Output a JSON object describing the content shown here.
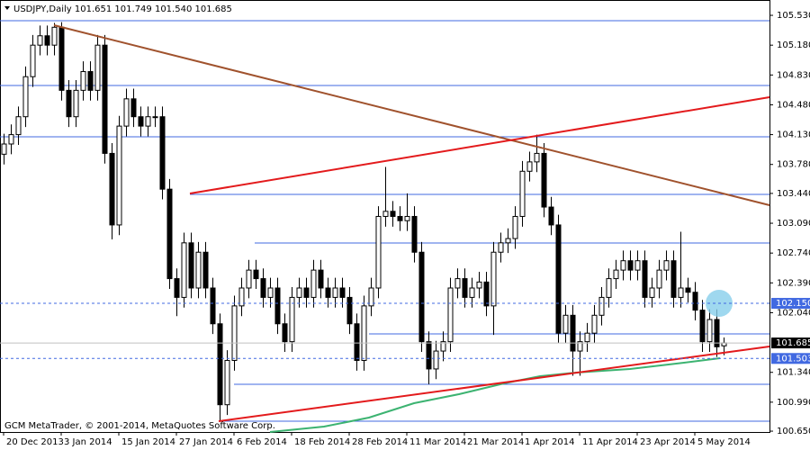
{
  "chart_data": {
    "type": "candlestick",
    "title": "USDJPY,Daily  101.651 101.749 101.540 101.685",
    "footer": "GCM MetaTrader, © 2001-2014, MetaQuotes Software Corp.",
    "categories": [
      "20 Dec 2013",
      null,
      null,
      null,
      null,
      null,
      null,
      null,
      "3 Jan 2014",
      null,
      null,
      null,
      null,
      null,
      null,
      null,
      "15 Jan 2014",
      null,
      null,
      null,
      null,
      null,
      null,
      null,
      "27 Jan 2014",
      null,
      null,
      null,
      null,
      null,
      null,
      null,
      "6 Feb 2014",
      null,
      null,
      null,
      null,
      null,
      null,
      null,
      "18 Feb 2014",
      null,
      null,
      null,
      null,
      null,
      null,
      null,
      "28 Feb 2014",
      null,
      null,
      null,
      null,
      null,
      null,
      null,
      "11 Mar 2014",
      null,
      null,
      null,
      null,
      null,
      null,
      null,
      "21 Mar 2014",
      null,
      null,
      null,
      null,
      null,
      null,
      null,
      "1 Apr 2014",
      null,
      null,
      null,
      null,
      null,
      null,
      null,
      "11 Apr 2014",
      null,
      null,
      null,
      null,
      null,
      null,
      null,
      "23 Apr 2014",
      null,
      null,
      null,
      null,
      null,
      null,
      null,
      "5 May 2014",
      null,
      null,
      null,
      null
    ],
    "series": [
      {
        "name": "USDJPY",
        "open": [
          103.9,
          104.02,
          104.13,
          104.34,
          104.81,
          105.18,
          105.29,
          105.18,
          105.39,
          104.65,
          104.34,
          104.65,
          104.87,
          104.65,
          105.18,
          103.91,
          103.07,
          104.23,
          104.55,
          104.34,
          104.23,
          104.34,
          104.34,
          103.49,
          102.44,
          102.22,
          102.86,
          102.33,
          102.75,
          102.33,
          101.91,
          100.96,
          101.48,
          102.12,
          102.33,
          102.54,
          102.44,
          102.22,
          102.33,
          101.91,
          101.7,
          102.22,
          102.33,
          102.22,
          102.54,
          102.33,
          102.22,
          102.33,
          102.22,
          101.91,
          101.48,
          102.12,
          102.33,
          103.17,
          103.23,
          103.17,
          103.12,
          103.17,
          102.75,
          101.7,
          101.38,
          101.59,
          101.7,
          102.33,
          102.44,
          102.22,
          102.33,
          102.4,
          102.12,
          102.75,
          102.86,
          102.91,
          103.17,
          103.7,
          103.81,
          103.91,
          103.28,
          103.07,
          101.8,
          102.01,
          101.59,
          101.7,
          101.8,
          102.01,
          102.22,
          102.44,
          102.54,
          102.65,
          102.54,
          102.65,
          102.22,
          102.33,
          102.54,
          102.65,
          102.22,
          102.33,
          102.28,
          102.07,
          101.7,
          101.96,
          101.651
        ],
        "high": [
          104.14,
          104.25,
          104.46,
          104.93,
          105.3,
          105.41,
          105.41,
          105.44,
          105.45,
          104.77,
          104.77,
          104.99,
          104.99,
          105.3,
          105.3,
          104.03,
          104.35,
          104.67,
          104.67,
          104.46,
          104.46,
          104.46,
          104.46,
          103.61,
          102.56,
          102.98,
          102.98,
          102.87,
          102.87,
          102.45,
          102.03,
          101.6,
          102.24,
          102.45,
          102.66,
          102.66,
          102.56,
          102.45,
          102.45,
          102.03,
          102.34,
          102.45,
          102.45,
          102.66,
          102.66,
          102.45,
          102.45,
          102.45,
          102.34,
          102.03,
          102.24,
          102.45,
          103.29,
          103.75,
          103.35,
          103.29,
          103.44,
          103.29,
          102.87,
          101.82,
          101.71,
          101.82,
          102.45,
          102.56,
          102.56,
          102.45,
          102.52,
          102.52,
          102.87,
          102.98,
          103.03,
          103.29,
          103.82,
          103.93,
          104.13,
          104.03,
          103.4,
          103.19,
          102.13,
          102.13,
          101.82,
          101.92,
          102.13,
          102.34,
          102.56,
          102.66,
          102.77,
          102.77,
          102.77,
          102.77,
          102.45,
          102.66,
          102.77,
          102.77,
          102.99,
          102.45,
          102.4,
          102.19,
          102.08,
          102.08,
          101.749
        ],
        "low": [
          103.78,
          103.9,
          104.01,
          104.22,
          104.69,
          105.06,
          105.06,
          105.06,
          104.53,
          104.22,
          104.22,
          104.53,
          104.53,
          104.53,
          103.79,
          102.9,
          102.95,
          104.11,
          104.22,
          104.11,
          104.11,
          104.22,
          103.37,
          102.32,
          102.0,
          102.1,
          102.21,
          102.21,
          102.21,
          101.79,
          100.76,
          100.84,
          101.36,
          102.0,
          102.21,
          102.32,
          102.1,
          102.1,
          101.79,
          101.58,
          101.58,
          102.1,
          102.1,
          102.1,
          102.21,
          102.1,
          102.1,
          102.1,
          101.79,
          101.36,
          101.36,
          102.0,
          102.21,
          103.05,
          103.05,
          103.0,
          103.0,
          102.63,
          101.58,
          101.2,
          101.26,
          101.47,
          101.58,
          102.21,
          102.1,
          102.1,
          102.21,
          102.0,
          101.78,
          102.63,
          102.74,
          102.79,
          103.05,
          103.58,
          103.69,
          103.16,
          102.95,
          101.68,
          101.68,
          101.3,
          101.3,
          101.58,
          101.68,
          101.89,
          102.1,
          102.32,
          102.42,
          102.42,
          102.42,
          102.1,
          102.1,
          102.21,
          102.42,
          102.1,
          102.1,
          102.16,
          101.95,
          101.58,
          101.58,
          101.52,
          101.54
        ],
        "close": [
          104.02,
          104.13,
          104.34,
          104.81,
          105.18,
          105.29,
          105.18,
          105.39,
          104.65,
          104.34,
          104.65,
          104.87,
          104.65,
          105.18,
          103.91,
          103.07,
          104.23,
          104.55,
          104.34,
          104.23,
          104.34,
          104.34,
          103.49,
          102.44,
          102.22,
          102.86,
          102.33,
          102.75,
          102.33,
          101.91,
          100.96,
          101.48,
          102.12,
          102.33,
          102.54,
          102.44,
          102.22,
          102.33,
          101.91,
          101.7,
          102.22,
          102.33,
          102.22,
          102.54,
          102.33,
          102.22,
          102.33,
          102.22,
          101.91,
          101.48,
          102.12,
          102.33,
          103.17,
          103.23,
          103.17,
          103.12,
          103.17,
          102.75,
          101.7,
          101.38,
          101.59,
          101.7,
          102.33,
          102.44,
          102.22,
          102.33,
          102.4,
          102.12,
          102.75,
          102.86,
          102.91,
          103.17,
          103.7,
          103.81,
          103.91,
          103.28,
          103.07,
          101.8,
          102.01,
          101.59,
          101.7,
          101.8,
          102.01,
          102.22,
          102.44,
          102.54,
          102.65,
          102.54,
          102.65,
          102.22,
          102.33,
          102.54,
          102.65,
          102.22,
          102.33,
          102.28,
          102.07,
          101.7,
          101.96,
          101.64,
          101.685
        ]
      }
    ],
    "ylim": [
      100.64,
      105.71
    ],
    "yticks": [
      {
        "value": 105.53,
        "label": "105.530"
      },
      {
        "value": 105.18,
        "label": "105.180"
      },
      {
        "value": 104.83,
        "label": "104.830"
      },
      {
        "value": 104.48,
        "label": "104.480"
      },
      {
        "value": 104.13,
        "label": "104.130"
      },
      {
        "value": 103.78,
        "label": "103.780"
      },
      {
        "value": 103.44,
        "label": "103.440"
      },
      {
        "value": 103.09,
        "label": "103.090"
      },
      {
        "value": 102.74,
        "label": "102.740"
      },
      {
        "value": 102.39,
        "label": "102.390"
      },
      {
        "value": 102.04,
        "label": "102.040"
      },
      {
        "value": 101.34,
        "label": "101.340"
      },
      {
        "value": 100.99,
        "label": "100.990"
      },
      {
        "value": 100.65,
        "label": "100.650"
      }
    ],
    "price_labels": [
      {
        "value": 102.15,
        "label": "102.150",
        "color": "#4169e1"
      },
      {
        "value": 101.685,
        "label": "101.685",
        "color": "#000000"
      },
      {
        "value": 101.503,
        "label": "101.503",
        "color": "#4169e1"
      }
    ]
  }
}
